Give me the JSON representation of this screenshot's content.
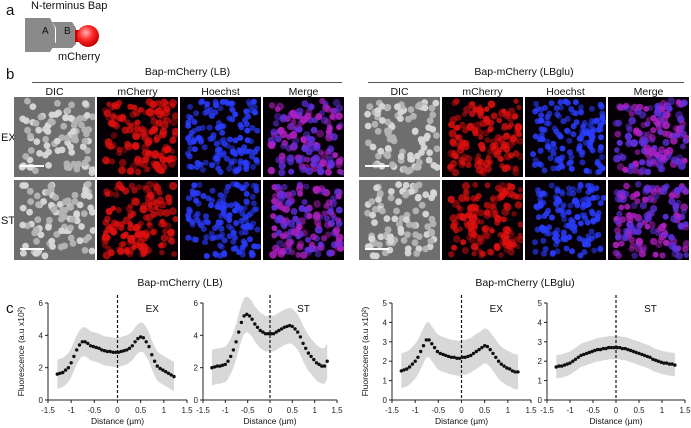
{
  "panel_a": {
    "letter": "a",
    "title": "N-terminus Bap",
    "domain_a": "A",
    "domain_b": "B",
    "tag": "mCherry"
  },
  "panel_b": {
    "letter": "b",
    "conditions": [
      {
        "title": "Bap-mCherry (LB)"
      },
      {
        "title": "Bap-mCherry (LBglu)"
      }
    ],
    "channels": [
      "DIC",
      "mCherry",
      "Hoechst",
      "Merge"
    ],
    "rows": [
      "EX",
      "ST"
    ]
  },
  "panel_c": {
    "letter": "c",
    "group_titles": [
      "Bap-mCherry (LB)",
      "Bap-mCherry (LBglu)"
    ]
  },
  "chart_data": [
    {
      "type": "scatter",
      "title": "EX",
      "xlabel": "Distance (µm)",
      "ylabel": "Fluorescence (a.u x10²)",
      "xlim": [
        -1.5,
        1.5
      ],
      "ylim": [
        0,
        6
      ],
      "xticks": [
        "-1.5",
        "-1",
        "-0.5",
        "0",
        "0.5",
        "1",
        "1.5"
      ],
      "yticks": [
        "0",
        "2",
        "4",
        "6"
      ],
      "x": [
        -1.3,
        -1.24,
        -1.18,
        -1.12,
        -1.06,
        -1.0,
        -0.94,
        -0.88,
        -0.82,
        -0.76,
        -0.7,
        -0.64,
        -0.58,
        -0.52,
        -0.46,
        -0.4,
        -0.34,
        -0.28,
        -0.22,
        -0.16,
        -0.1,
        -0.04,
        0.02,
        0.08,
        0.14,
        0.2,
        0.26,
        0.32,
        0.38,
        0.44,
        0.5,
        0.56,
        0.62,
        0.68,
        0.74,
        0.8,
        0.86,
        0.92,
        0.98,
        1.04,
        1.1,
        1.16,
        1.22
      ],
      "y": [
        1.6,
        1.65,
        1.7,
        1.85,
        2.0,
        2.3,
        2.7,
        3.1,
        3.4,
        3.6,
        3.6,
        3.5,
        3.35,
        3.3,
        3.25,
        3.2,
        3.1,
        3.05,
        3.0,
        3.0,
        2.95,
        2.95,
        2.95,
        3.0,
        3.05,
        3.1,
        3.2,
        3.35,
        3.6,
        3.8,
        3.9,
        3.85,
        3.6,
        3.3,
        2.8,
        2.4,
        2.1,
        1.95,
        1.85,
        1.75,
        1.65,
        1.55,
        1.45
      ],
      "band": 0.9
    },
    {
      "type": "scatter",
      "title": "ST",
      "xlabel": "Distance (µm)",
      "ylabel": "",
      "xlim": [
        -1.5,
        1.5
      ],
      "ylim": [
        0,
        6
      ],
      "xticks": [
        "-1.5",
        "-1",
        "-0.5",
        "0",
        "0.5",
        "1",
        "1.5"
      ],
      "yticks": [
        "0",
        "2",
        "4",
        "6"
      ],
      "x": [
        -1.3,
        -1.24,
        -1.18,
        -1.12,
        -1.06,
        -1.0,
        -0.94,
        -0.88,
        -0.82,
        -0.76,
        -0.7,
        -0.64,
        -0.58,
        -0.52,
        -0.46,
        -0.4,
        -0.34,
        -0.28,
        -0.22,
        -0.16,
        -0.1,
        -0.04,
        0.02,
        0.08,
        0.14,
        0.2,
        0.26,
        0.32,
        0.38,
        0.44,
        0.5,
        0.56,
        0.62,
        0.68,
        0.74,
        0.8,
        0.86,
        0.92,
        0.98,
        1.04,
        1.1,
        1.16,
        1.22,
        1.28
      ],
      "y": [
        2.0,
        2.05,
        2.1,
        2.1,
        2.15,
        2.2,
        2.4,
        2.7,
        3.1,
        3.6,
        4.2,
        4.8,
        5.2,
        5.3,
        5.2,
        5.0,
        4.7,
        4.5,
        4.3,
        4.2,
        4.1,
        4.1,
        4.1,
        4.1,
        4.2,
        4.3,
        4.4,
        4.5,
        4.55,
        4.6,
        4.55,
        4.4,
        4.2,
        3.9,
        3.5,
        3.2,
        2.9,
        2.7,
        2.5,
        2.3,
        2.2,
        2.1,
        2.1,
        2.4
      ],
      "band": 1.1
    },
    {
      "type": "scatter",
      "title": "EX",
      "xlabel": "Distance (µm)",
      "ylabel": "Fluorescence (a.u x10²)",
      "xlim": [
        -1.5,
        1.5
      ],
      "ylim": [
        0,
        5
      ],
      "xticks": [
        "-1.5",
        "-1",
        "-0.5",
        "0",
        "0.5",
        "1",
        "1.5"
      ],
      "yticks": [
        "0",
        "1",
        "2",
        "3",
        "4",
        "5"
      ],
      "x": [
        -1.3,
        -1.24,
        -1.18,
        -1.12,
        -1.06,
        -1.0,
        -0.94,
        -0.88,
        -0.82,
        -0.76,
        -0.7,
        -0.64,
        -0.58,
        -0.52,
        -0.46,
        -0.4,
        -0.34,
        -0.28,
        -0.22,
        -0.16,
        -0.1,
        -0.04,
        0.02,
        0.08,
        0.14,
        0.2,
        0.26,
        0.32,
        0.38,
        0.44,
        0.5,
        0.56,
        0.62,
        0.68,
        0.74,
        0.8,
        0.86,
        0.92,
        0.98,
        1.04,
        1.1,
        1.16,
        1.22
      ],
      "y": [
        1.5,
        1.55,
        1.6,
        1.7,
        1.85,
        2.0,
        2.2,
        2.5,
        2.8,
        3.1,
        3.1,
        2.9,
        2.7,
        2.5,
        2.4,
        2.35,
        2.3,
        2.25,
        2.2,
        2.2,
        2.15,
        2.15,
        2.2,
        2.2,
        2.25,
        2.3,
        2.4,
        2.5,
        2.6,
        2.7,
        2.8,
        2.75,
        2.6,
        2.4,
        2.2,
        2.0,
        1.85,
        1.75,
        1.65,
        1.6,
        1.5,
        1.45,
        1.45
      ],
      "band": 0.9
    },
    {
      "type": "scatter",
      "title": "ST",
      "xlabel": "Distance (µm)",
      "ylabel": "",
      "xlim": [
        -1.5,
        1.5
      ],
      "ylim": [
        0,
        5
      ],
      "xticks": [
        "-1.5",
        "-1",
        "-0.5",
        "0",
        "0.5",
        "1",
        "1.5"
      ],
      "yticks": [
        "0",
        "1",
        "2",
        "3",
        "4",
        "5"
      ],
      "x": [
        -1.3,
        -1.24,
        -1.18,
        -1.12,
        -1.06,
        -1.0,
        -0.94,
        -0.88,
        -0.82,
        -0.76,
        -0.7,
        -0.64,
        -0.58,
        -0.52,
        -0.46,
        -0.4,
        -0.34,
        -0.28,
        -0.22,
        -0.16,
        -0.1,
        -0.04,
        0.02,
        0.08,
        0.14,
        0.2,
        0.26,
        0.32,
        0.38,
        0.44,
        0.5,
        0.56,
        0.62,
        0.68,
        0.74,
        0.8,
        0.86,
        0.92,
        0.98,
        1.04,
        1.1,
        1.16,
        1.22,
        1.28
      ],
      "y": [
        1.7,
        1.75,
        1.75,
        1.8,
        1.85,
        1.9,
        2.0,
        2.1,
        2.2,
        2.3,
        2.35,
        2.4,
        2.45,
        2.5,
        2.55,
        2.6,
        2.6,
        2.65,
        2.65,
        2.7,
        2.7,
        2.7,
        2.7,
        2.7,
        2.65,
        2.65,
        2.6,
        2.55,
        2.5,
        2.45,
        2.4,
        2.35,
        2.3,
        2.25,
        2.2,
        2.1,
        2.05,
        2.0,
        1.95,
        1.9,
        1.9,
        1.85,
        1.85,
        1.8
      ],
      "band": 0.6
    }
  ]
}
